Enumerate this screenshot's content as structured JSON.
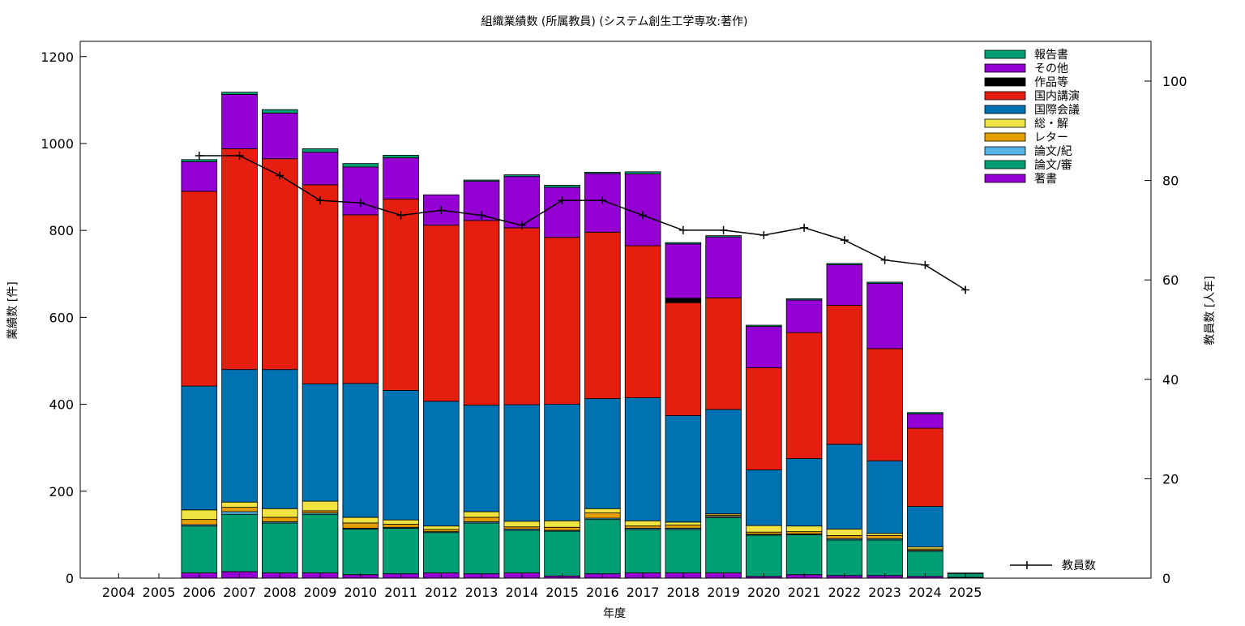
{
  "chart_data": {
    "type": "bar",
    "stacked": true,
    "title": "組織業績数 (所属教員) (システム創生工学専攻:著作)",
    "xlabel": "年度",
    "ylabel": "業績数 [件]",
    "y2label": "教員数 [人年]",
    "ylim": [
      0,
      1200
    ],
    "y2lim": [
      0,
      100
    ],
    "yticks": [
      0,
      200,
      400,
      600,
      800,
      1000,
      1200
    ],
    "y2ticks": [
      0,
      20,
      40,
      60,
      80,
      100
    ],
    "categories": [
      "2004",
      "2005",
      "2006",
      "2007",
      "2008",
      "2009",
      "2010",
      "2011",
      "2012",
      "2013",
      "2014",
      "2015",
      "2016",
      "2017",
      "2018",
      "2019",
      "2020",
      "2021",
      "2022",
      "2023",
      "2024",
      "2025"
    ],
    "series": [
      {
        "name": "著書",
        "color": "#9400d3",
        "values": [
          0,
          0,
          12,
          15,
          12,
          12,
          8,
          10,
          12,
          10,
          12,
          5,
          10,
          12,
          12,
          12,
          4,
          8,
          6,
          6,
          4,
          2
        ]
      },
      {
        "name": "論文/審",
        "color": "#009e73",
        "values": [
          0,
          0,
          108,
          132,
          115,
          135,
          105,
          105,
          93,
          117,
          98,
          103,
          125,
          100,
          100,
          127,
          95,
          92,
          82,
          82,
          58,
          8
        ]
      },
      {
        "name": "論文/紀",
        "color": "#56b4e9",
        "values": [
          0,
          0,
          3,
          6,
          3,
          3,
          2,
          2,
          2,
          3,
          3,
          2,
          3,
          3,
          3,
          3,
          2,
          2,
          3,
          3,
          2,
          0
        ]
      },
      {
        "name": "レター",
        "color": "#e69f00",
        "values": [
          0,
          0,
          12,
          10,
          10,
          5,
          12,
          7,
          5,
          10,
          5,
          7,
          12,
          5,
          7,
          3,
          5,
          5,
          7,
          7,
          3,
          0
        ]
      },
      {
        "name": "総・解",
        "color": "#f0e442",
        "values": [
          0,
          0,
          22,
          12,
          20,
          22,
          13,
          10,
          8,
          13,
          13,
          15,
          10,
          12,
          7,
          3,
          15,
          13,
          15,
          5,
          5,
          0
        ]
      },
      {
        "name": "国際会議",
        "color": "#0072b2",
        "values": [
          0,
          0,
          285,
          305,
          320,
          270,
          308,
          298,
          287,
          245,
          268,
          268,
          253,
          283,
          245,
          240,
          128,
          155,
          195,
          167,
          93,
          0
        ]
      },
      {
        "name": "国内講演",
        "color": "#e51e10",
        "values": [
          0,
          0,
          448,
          508,
          485,
          458,
          388,
          440,
          405,
          425,
          407,
          384,
          383,
          350,
          260,
          257,
          235,
          290,
          320,
          258,
          180,
          0
        ]
      },
      {
        "name": "作品等",
        "color": "#000000",
        "values": [
          0,
          0,
          0,
          0,
          0,
          0,
          0,
          0,
          0,
          0,
          0,
          0,
          0,
          0,
          10,
          0,
          0,
          0,
          0,
          0,
          0,
          0
        ]
      },
      {
        "name": "その他",
        "color": "#9400d3",
        "values": [
          0,
          0,
          68,
          125,
          105,
          75,
          110,
          95,
          70,
          90,
          118,
          115,
          135,
          165,
          125,
          140,
          95,
          75,
          93,
          150,
          33,
          0
        ]
      },
      {
        "name": "報告書",
        "color": "#009e73",
        "values": [
          0,
          0,
          5,
          5,
          8,
          8,
          8,
          6,
          0,
          3,
          4,
          5,
          3,
          5,
          3,
          3,
          3,
          3,
          3,
          3,
          3,
          2
        ]
      }
    ],
    "line": {
      "name": "教員数",
      "axis": "y2",
      "color": "#000000",
      "values": [
        null,
        null,
        85,
        85,
        81,
        76,
        75.5,
        73,
        74,
        73,
        71,
        76,
        76,
        73,
        70,
        70,
        69,
        70.5,
        68,
        64,
        63,
        58
      ]
    },
    "legend_position": "top-right"
  }
}
